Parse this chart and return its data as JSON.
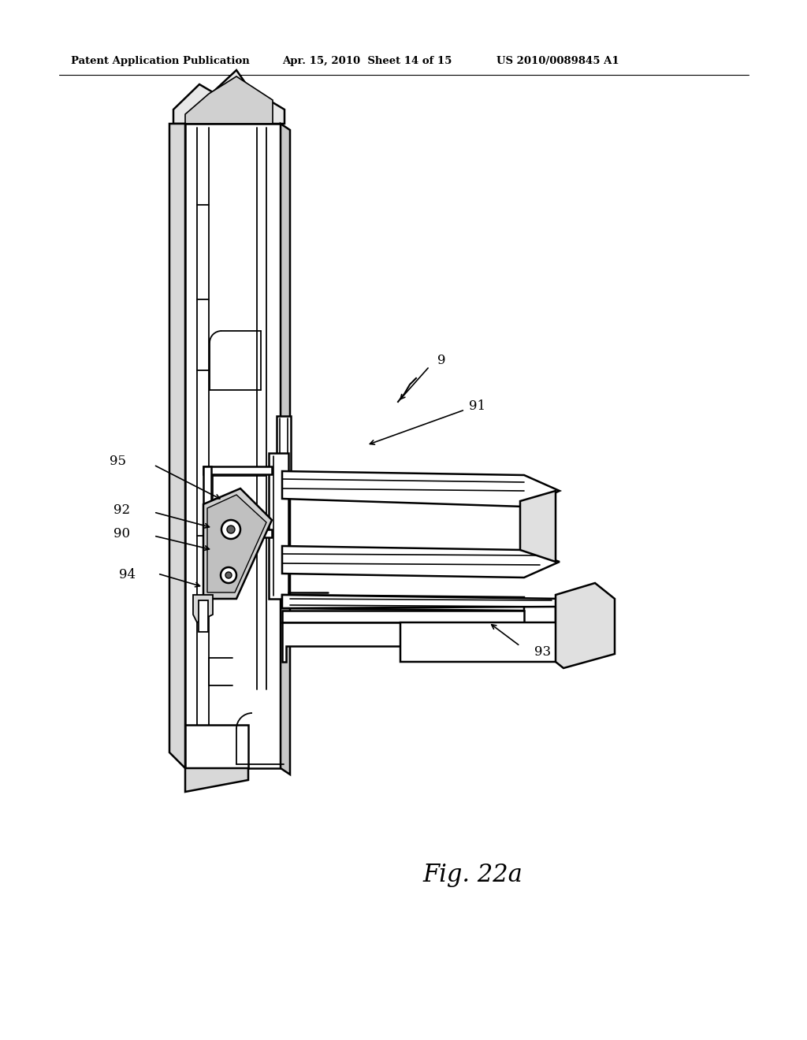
{
  "background_color": "#ffffff",
  "header_left": "Patent Application Publication",
  "header_center": "Apr. 15, 2010  Sheet 14 of 15",
  "header_right": "US 2010/0089845 A1",
  "figure_label": "Fig. 22a"
}
